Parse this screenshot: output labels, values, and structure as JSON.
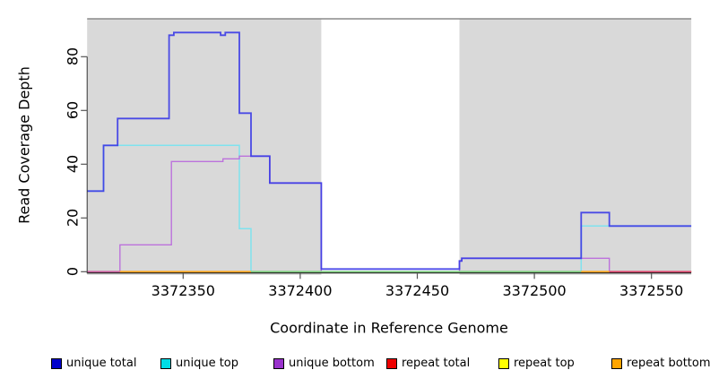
{
  "chart_data": {
    "type": "line",
    "subtype": "step-coverage-plot",
    "title": "",
    "xlabel": "Coordinate in Reference Genome",
    "ylabel": "Read Coverage Depth",
    "xlim": [
      3372309,
      3372567
    ],
    "ylim": [
      0,
      94
    ],
    "x_ticks": [
      3372350,
      3372400,
      3372450,
      3372500,
      3372550
    ],
    "y_ticks": [
      0,
      20,
      40,
      60,
      80
    ],
    "grid": false,
    "legend_position": "bottom",
    "shaded_regions": [
      {
        "from": 3372309,
        "to": 3372409,
        "fill": "#D9D9D9"
      },
      {
        "from": 3372468,
        "to": 3372567,
        "fill": "#D9D9D9"
      }
    ],
    "gap_region": {
      "from": 3372409,
      "to": 3372468,
      "fill": "#FFFFFF"
    },
    "top_border_color": "#8A8A8A",
    "series": [
      {
        "name": "unique total",
        "color": "#3A3AE6",
        "opacity": 0.9,
        "width": 1.8,
        "steps": [
          [
            3372309,
            30
          ],
          [
            3372316,
            47
          ],
          [
            3372322,
            57
          ],
          [
            3372344,
            88
          ],
          [
            3372346,
            89
          ],
          [
            3372366,
            88
          ],
          [
            3372368,
            89
          ],
          [
            3372374,
            59
          ],
          [
            3372379,
            43
          ],
          [
            3372387,
            33
          ],
          [
            3372409,
            1
          ],
          [
            3372468,
            4
          ],
          [
            3372469,
            5
          ],
          [
            3372520,
            22
          ],
          [
            3372532,
            17
          ]
        ],
        "end": 3372567
      },
      {
        "name": "unique top",
        "color": "#7FE2EE",
        "opacity": 1,
        "width": 1.5,
        "steps": [
          [
            3372309,
            30
          ],
          [
            3372316,
            47
          ],
          [
            3372374,
            16
          ],
          [
            3372379,
            0
          ],
          [
            3372520,
            17
          ]
        ],
        "end": 3372567
      },
      {
        "name": "unique bottom",
        "color": "#BC72DC",
        "opacity": 1,
        "width": 1.4,
        "steps": [
          [
            3372309,
            0
          ],
          [
            3372323,
            10
          ],
          [
            3372345,
            41
          ],
          [
            3372367,
            42
          ],
          [
            3372374,
            43
          ],
          [
            3372387,
            33
          ],
          [
            3372409,
            0
          ],
          [
            3372468,
            4
          ],
          [
            3372469,
            5
          ],
          [
            3372532,
            0
          ]
        ],
        "end": 3372567
      },
      {
        "name": "repeat total",
        "color": "#D9486E",
        "opacity": 1,
        "width": 1.5,
        "steps": [
          [
            3372309,
            0
          ]
        ],
        "end": 3372567
      },
      {
        "name": "repeat top",
        "color": "#F5E94E",
        "opacity": 1,
        "width": 1.4,
        "steps": [
          [
            3372309,
            0
          ]
        ],
        "end": 3372567
      },
      {
        "name": "repeat bottom",
        "color": "#FFA51E",
        "opacity": 1,
        "width": 1.5,
        "steps": [
          [
            3372309,
            0
          ]
        ],
        "end": 3372567
      }
    ],
    "baseline_overlap_segments": [
      {
        "from": 3372309,
        "to": 3372323,
        "color": "#C9629F"
      },
      {
        "from": 3372323,
        "to": 3372379,
        "color": "#FFA51E"
      },
      {
        "from": 3372379,
        "to": 3372520,
        "color": "#7FCE7F"
      },
      {
        "from": 3372520,
        "to": 3372532,
        "color": "#FFA51E"
      },
      {
        "from": 3372532,
        "to": 3372567,
        "color": "#D9486E"
      }
    ]
  },
  "legend": {
    "items": [
      {
        "label": "unique total",
        "color": "#0000CC"
      },
      {
        "label": "unique top",
        "color": "#00DDE6"
      },
      {
        "label": "unique bottom",
        "color": "#9932CC"
      },
      {
        "label": "repeat total",
        "color": "#EE0000"
      },
      {
        "label": "repeat top",
        "color": "#FFFF00"
      },
      {
        "label": "repeat bottom",
        "color": "#FFA500"
      }
    ]
  }
}
